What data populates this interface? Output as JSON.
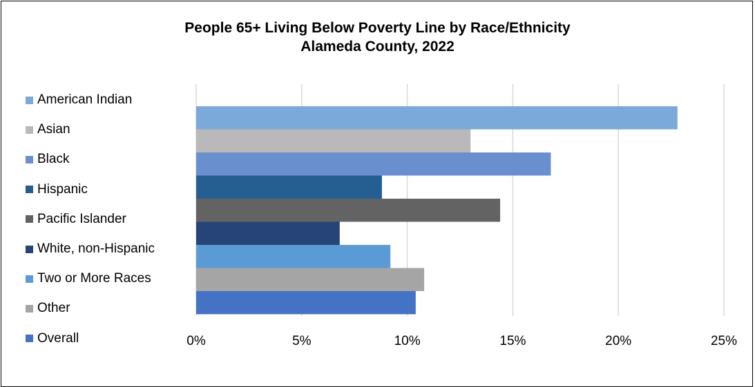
{
  "chart_data": {
    "type": "bar",
    "orientation": "horizontal",
    "title_lines": [
      "People 65+ Living Below Poverty Line by Race/Ethnicity",
      "Alameda County, 2022"
    ],
    "xlabel": "",
    "ylabel": "",
    "xlim": [
      0,
      25
    ],
    "x_ticks": [
      0,
      5,
      10,
      15,
      20,
      25
    ],
    "x_tick_labels": [
      "0%",
      "5%",
      "10%",
      "15%",
      "20%",
      "25%"
    ],
    "grid": true,
    "legend_position": "left",
    "series": [
      {
        "name": "American Indian",
        "values": [
          22.8
        ],
        "color": "#7aa9da"
      },
      {
        "name": "Asian",
        "values": [
          13.0
        ],
        "color": "#b9b9b9"
      },
      {
        "name": "Black",
        "values": [
          16.8
        ],
        "color": "#6a8fce"
      },
      {
        "name": "Hispanic",
        "values": [
          8.8
        ],
        "color": "#255e91"
      },
      {
        "name": "Pacific Islander",
        "values": [
          14.4
        ],
        "color": "#636363"
      },
      {
        "name": "White, non-Hispanic",
        "values": [
          6.8
        ],
        "color": "#264478"
      },
      {
        "name": "Two or More Races",
        "values": [
          9.2
        ],
        "color": "#5b9bd5"
      },
      {
        "name": "Other",
        "values": [
          10.8
        ],
        "color": "#a5a5a5"
      },
      {
        "name": "Overall",
        "values": [
          10.4
        ],
        "color": "#4472c4"
      }
    ]
  }
}
